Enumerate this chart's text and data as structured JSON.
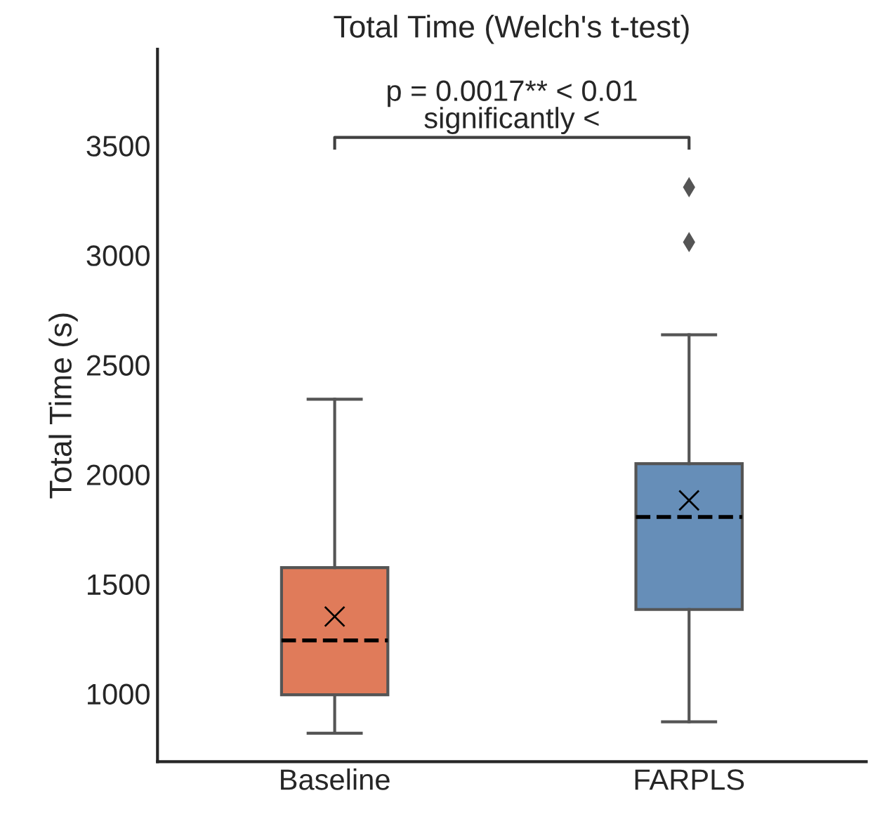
{
  "chart_data": {
    "type": "box",
    "title": "Total Time (Welch's t-test)",
    "ylabel": "Total Time (s)",
    "categories": [
      "Baseline",
      "FARPLS"
    ],
    "series": [
      {
        "colors": [
          "#e07b5a",
          "#668eb8"
        ],
        "boxes": [
          {
            "low": 820,
            "q1": 995,
            "median": 1243,
            "q3": 1575,
            "high": 2343,
            "mean": 1352
          },
          {
            "low": 872,
            "q1": 1384,
            "median": 1806,
            "q3": 2049,
            "high": 2637,
            "mean": 1882,
            "outliers": [
              3060,
              3310
            ]
          }
        ]
      }
    ],
    "ylim": [
      690,
      3940
    ],
    "yticks": [
      1000,
      1500,
      2000,
      2500,
      3000,
      3500
    ],
    "annotations": [
      "p = 0.0017** < 0.01\nsignificantly <"
    ],
    "grid": false
  }
}
